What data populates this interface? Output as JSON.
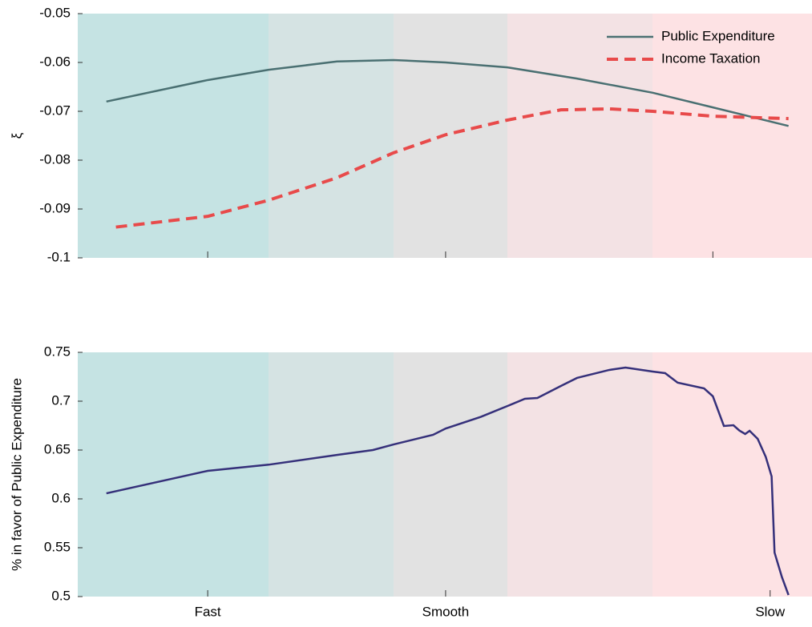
{
  "chart_data": [
    {
      "type": "line",
      "y_label": "ξ",
      "xlim": [
        0,
        100
      ],
      "xticks": [
        17.7,
        50.1,
        86.5
      ],
      "ylim": [
        -0.1,
        -0.05
      ],
      "yticks": [
        -0.1,
        -0.09,
        -0.08,
        -0.07,
        -0.06,
        -0.05
      ],
      "legend": "top-right",
      "series": [
        {
          "name": "Public Expenditure",
          "color": "#4a7072",
          "dash": false,
          "x": [
            3.9,
            17.7,
            26.0,
            35.3,
            43.0,
            50.1,
            58.5,
            68.0,
            78.3,
            86.5,
            96.8
          ],
          "values": [
            -0.068,
            -0.0636,
            -0.0615,
            -0.0598,
            -0.0595,
            -0.06,
            -0.061,
            -0.0633,
            -0.0662,
            -0.0692,
            -0.073
          ]
        },
        {
          "name": "Income Taxation",
          "color": "#e84a4a",
          "dash": true,
          "x": [
            5.2,
            17.7,
            26.0,
            35.3,
            43.0,
            50.1,
            58.5,
            65.8,
            72.4,
            78.3,
            86.5,
            96.8
          ],
          "values": [
            -0.0937,
            -0.0915,
            -0.0882,
            -0.0836,
            -0.0785,
            -0.0748,
            -0.0718,
            -0.0697,
            -0.0695,
            -0.07,
            -0.071,
            -0.0715
          ]
        }
      ]
    },
    {
      "type": "line",
      "y_label": "% in favor of Public Expenditure",
      "xlim": [
        0,
        100
      ],
      "xticks": [
        {
          "value": 17.7,
          "label": "Fast"
        },
        {
          "value": 50.1,
          "label": "Smooth"
        },
        {
          "value": 94.3,
          "label": "Slow"
        }
      ],
      "ylim": [
        0.5,
        0.75
      ],
      "yticks": [
        0.5,
        0.55,
        0.6,
        0.65,
        0.7,
        0.75
      ],
      "color": "#35307a",
      "x": [
        3.9,
        17.7,
        26.0,
        35.3,
        40.2,
        43.0,
        48.4,
        50.1,
        54.9,
        58.5,
        60.9,
        62.6,
        65.8,
        68.0,
        72.4,
        74.6,
        78.3,
        80.0,
        81.7,
        85.3,
        86.5,
        88.0,
        89.3,
        90.1,
        90.9,
        91.5,
        92.6,
        93.7,
        94.5,
        94.9,
        95.9,
        96.8
      ],
      "values": [
        0.6057,
        0.6287,
        0.635,
        0.645,
        0.65,
        0.6557,
        0.6656,
        0.672,
        0.684,
        0.695,
        0.7025,
        0.7033,
        0.7156,
        0.7238,
        0.732,
        0.7344,
        0.7303,
        0.7287,
        0.719,
        0.7131,
        0.705,
        0.6746,
        0.6754,
        0.67,
        0.6664,
        0.6697,
        0.6615,
        0.643,
        0.623,
        0.545,
        0.52,
        0.5016
      ]
    }
  ]
}
